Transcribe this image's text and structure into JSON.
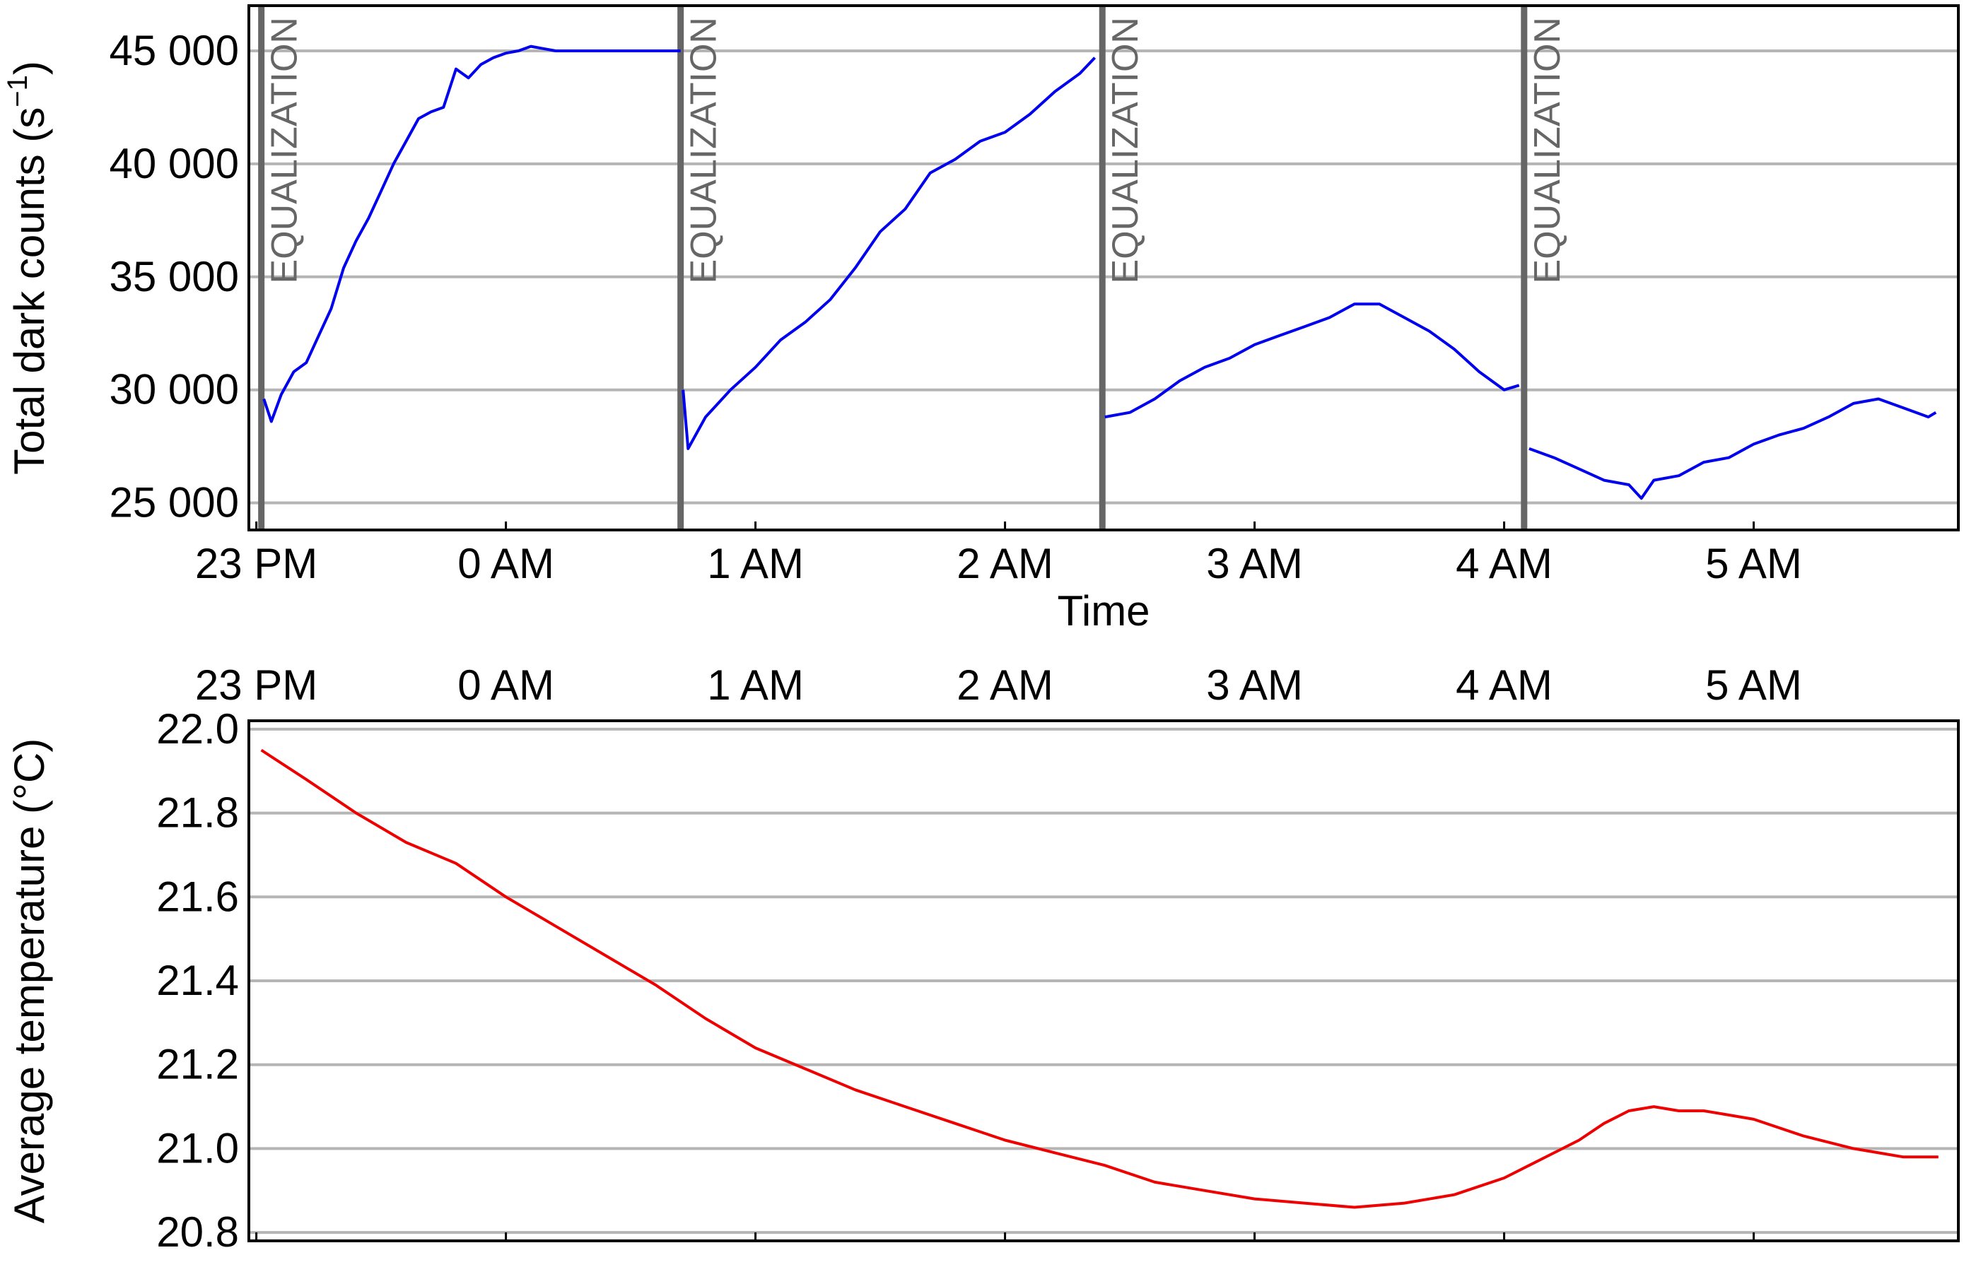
{
  "chart_data": [
    {
      "type": "line",
      "xlabel": "Time",
      "ylabel": "Total dark counts (s",
      "ylabel_sup": "−1",
      "ylabel_close": ")",
      "y_tick_labels": [
        "25 000",
        "30 000",
        "35 000",
        "40 000",
        "45 000"
      ],
      "y_ticks": [
        25000,
        30000,
        35000,
        40000,
        45000
      ],
      "ylim": [
        23800,
        47000
      ],
      "x_tick_labels": [
        "23 PM",
        "0 AM",
        "1 AM",
        "2 AM",
        "3 AM",
        "4 AM",
        "5 AM"
      ],
      "x_ticks": [
        23,
        24,
        25,
        26,
        27,
        28,
        29
      ],
      "xlim": [
        22.97,
        29.82
      ],
      "grid": "horizontal",
      "line_color": "#0000ee",
      "event_line_color": "#666666",
      "event_label": "EQUALIZATION",
      "event_x": [
        23.02,
        24.7,
        26.39,
        28.08
      ],
      "series": [
        {
          "x": [
            23.03,
            23.06,
            23.1,
            23.15,
            23.2,
            23.25,
            23.3,
            23.35,
            23.4,
            23.45,
            23.5,
            23.55,
            23.6,
            23.65,
            23.7,
            23.75,
            23.8,
            23.85,
            23.9,
            23.95,
            24.0,
            24.05,
            24.1,
            24.15,
            24.2,
            24.3,
            24.4,
            24.5,
            24.6,
            24.7
          ],
          "y": [
            29600,
            28600,
            29800,
            30800,
            31200,
            32400,
            33600,
            35400,
            36600,
            37600,
            38800,
            40000,
            41000,
            42000,
            42300,
            42500,
            44200,
            43800,
            44400,
            44700,
            44900,
            45000,
            45200,
            45100,
            45000,
            45000,
            45000,
            45000,
            45000,
            45000
          ]
        },
        {
          "x": [
            24.71,
            24.73,
            24.8,
            24.9,
            25.0,
            25.1,
            25.2,
            25.3,
            25.4,
            25.5,
            25.6,
            25.7,
            25.8,
            25.9,
            26.0,
            26.1,
            26.2,
            26.3,
            26.36
          ],
          "y": [
            30000,
            27400,
            28800,
            30000,
            31000,
            32200,
            33000,
            34000,
            35400,
            37000,
            38000,
            39600,
            40200,
            41000,
            41400,
            42200,
            43200,
            44000,
            44700
          ]
        },
        {
          "x": [
            26.4,
            26.5,
            26.6,
            26.7,
            26.8,
            26.9,
            27.0,
            27.1,
            27.2,
            27.3,
            27.4,
            27.5,
            27.6,
            27.7,
            27.8,
            27.9,
            28.0,
            28.06
          ],
          "y": [
            28800,
            29000,
            29600,
            30400,
            31000,
            31400,
            32000,
            32400,
            32800,
            33200,
            33800,
            33800,
            33200,
            32600,
            31800,
            30800,
            30000,
            30200
          ]
        },
        {
          "x": [
            28.1,
            28.2,
            28.3,
            28.4,
            28.5,
            28.55,
            28.6,
            28.7,
            28.8,
            28.9,
            29.0,
            29.1,
            29.2,
            29.3,
            29.4,
            29.5,
            29.6,
            29.7,
            29.73
          ],
          "y": [
            27400,
            27000,
            26500,
            26000,
            25800,
            25200,
            26000,
            26200,
            26800,
            27000,
            27600,
            28000,
            28300,
            28800,
            29400,
            29600,
            29200,
            28800,
            29000
          ]
        }
      ]
    },
    {
      "type": "line",
      "ylabel": "Average temperature (°C)",
      "y_tick_labels": [
        "20.8",
        "21.0",
        "21.2",
        "21.4",
        "21.6",
        "21.8",
        "22.0"
      ],
      "y_ticks": [
        20.8,
        21.0,
        21.2,
        21.4,
        21.6,
        21.8,
        22.0
      ],
      "ylim": [
        20.78,
        22.02
      ],
      "x_tick_labels": [
        "23 PM",
        "0 AM",
        "1 AM",
        "2 AM",
        "3 AM",
        "4 AM",
        "5 AM"
      ],
      "x_ticks": [
        23,
        24,
        25,
        26,
        27,
        28,
        29
      ],
      "xlim": [
        22.97,
        29.82
      ],
      "x_axis_labels_position": "top",
      "grid": "horizontal",
      "line_color": "#ee0000",
      "series": [
        {
          "x": [
            23.02,
            23.2,
            23.4,
            23.6,
            23.8,
            24.0,
            24.2,
            24.4,
            24.6,
            24.8,
            25.0,
            25.2,
            25.4,
            25.6,
            25.8,
            26.0,
            26.2,
            26.4,
            26.6,
            26.8,
            27.0,
            27.2,
            27.4,
            27.6,
            27.8,
            28.0,
            28.1,
            28.2,
            28.3,
            28.4,
            28.5,
            28.6,
            28.7,
            28.8,
            28.9,
            29.0,
            29.2,
            29.4,
            29.6,
            29.74
          ],
          "y": [
            21.95,
            21.88,
            21.8,
            21.73,
            21.68,
            21.6,
            21.53,
            21.46,
            21.39,
            21.31,
            21.24,
            21.19,
            21.14,
            21.1,
            21.06,
            21.02,
            20.99,
            20.96,
            20.92,
            20.9,
            20.88,
            20.87,
            20.86,
            20.87,
            20.89,
            20.93,
            20.96,
            20.99,
            21.02,
            21.06,
            21.09,
            21.1,
            21.09,
            21.09,
            21.08,
            21.07,
            21.03,
            21.0,
            20.98,
            20.98
          ]
        }
      ]
    }
  ]
}
